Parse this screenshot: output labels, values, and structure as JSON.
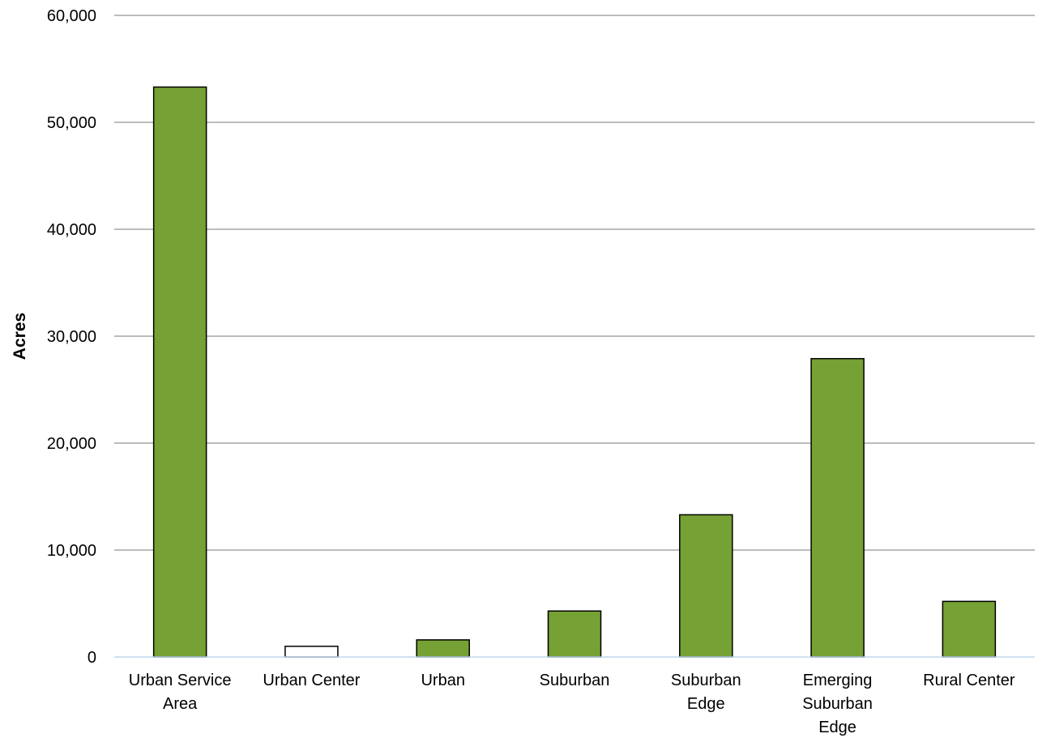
{
  "chart_data": {
    "type": "bar",
    "title": "",
    "xlabel": "",
    "ylabel": "Acres",
    "ylim": [
      0,
      60000
    ],
    "yticks": [
      0,
      10000,
      20000,
      30000,
      40000,
      50000,
      60000
    ],
    "ytick_labels": [
      "0",
      "10,000",
      "20,000",
      "30,000",
      "40,000",
      "50,000",
      "60,000"
    ],
    "categories": [
      [
        "Urban Service",
        "Area"
      ],
      [
        "Urban Center"
      ],
      [
        "Urban"
      ],
      [
        "Suburban"
      ],
      [
        "Suburban",
        "Edge"
      ],
      [
        "Emerging",
        "Suburban",
        "Edge"
      ],
      [
        "Rural Center"
      ]
    ],
    "values": [
      53300,
      1000,
      1600,
      4300,
      13300,
      27900,
      5200
    ],
    "bar_fills": [
      "#76a134",
      "#ffffff",
      "#76a134",
      "#76a134",
      "#76a134",
      "#76a134",
      "#76a134"
    ],
    "bar_stroke": "#000000",
    "grid": true,
    "grid_color": "#a6a6a6",
    "baseline_color": "#bdd7ee",
    "legend": "none"
  }
}
